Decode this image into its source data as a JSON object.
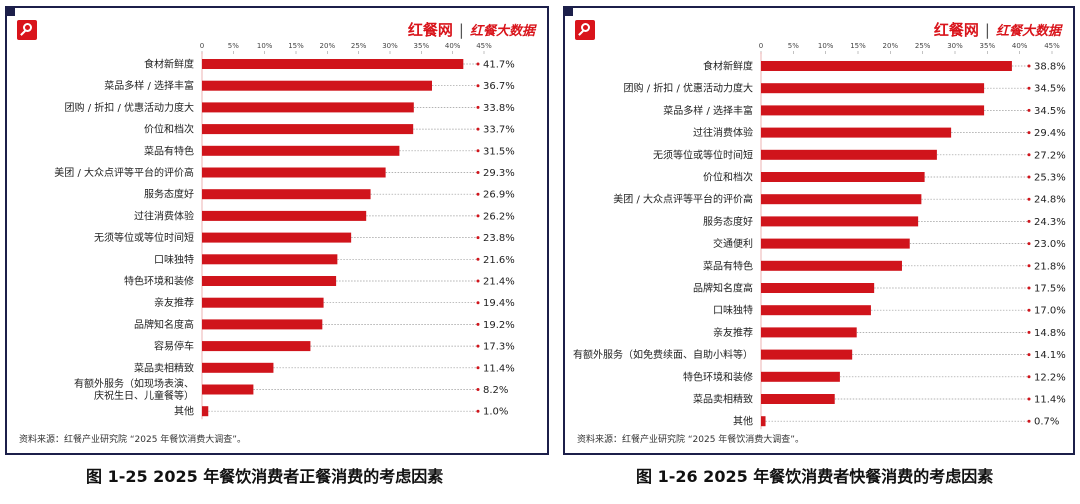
{
  "charts": [
    {
      "brand": {
        "name": "红餐网",
        "sub": "红餐大数据"
      },
      "source": "资料来源：红餐产业研究院 “2025 年餐饮消费大调查”。",
      "caption": "图 1-25    2025 年餐饮消费者正餐消费的考虑因素",
      "bar_color": "#d0141b",
      "chart_data": {
        "type": "bar",
        "orientation": "horizontal",
        "title": "图 1-25    2025 年餐饮消费者正餐消费的考虑因素",
        "xlim": [
          0,
          45
        ],
        "ticks": [
          "0",
          "5%",
          "10%",
          "15%",
          "20%",
          "25%",
          "30%",
          "35%",
          "40%",
          "45%"
        ],
        "categories": [
          "食材新鲜度",
          "菜品多样 / 选择丰富",
          "团购 / 折扣 / 优惠活动力度大",
          "价位和档次",
          "菜品有特色",
          "美团 / 大众点评等平台的评价高",
          "服务态度好",
          "过往消费体验",
          "无须等位或等位时间短",
          "口味独特",
          "特色环境和装修",
          "亲友推荐",
          "品牌知名度高",
          "容易停车",
          "菜品卖相精致",
          "有额外服务（如现场表演、\n庆祝生日、儿童餐等）",
          "其他"
        ],
        "values": [
          41.7,
          36.7,
          33.8,
          33.7,
          31.5,
          29.3,
          26.9,
          26.2,
          23.8,
          21.6,
          21.4,
          19.4,
          19.2,
          17.3,
          11.4,
          8.2,
          1.0
        ],
        "labels": [
          "41.7%",
          "36.7%",
          "33.8%",
          "33.7%",
          "31.5%",
          "29.3%",
          "26.9%",
          "26.2%",
          "23.8%",
          "21.6%",
          "21.4%",
          "19.4%",
          "19.2%",
          "17.3%",
          "11.4%",
          "8.2%",
          "1.0%"
        ]
      }
    },
    {
      "brand": {
        "name": "红餐网",
        "sub": "红餐大数据"
      },
      "source": "资料来源：红餐产业研究院 “2025 年餐饮消费大调查”。",
      "caption": "图 1-26    2025 年餐饮消费者快餐消费的考虑因素",
      "bar_color": "#d0141b",
      "chart_data": {
        "type": "bar",
        "orientation": "horizontal",
        "title": "图 1-26    2025 年餐饮消费者快餐消费的考虑因素",
        "xlim": [
          0,
          45
        ],
        "ticks": [
          "0",
          "5%",
          "10%",
          "15%",
          "20%",
          "25%",
          "30%",
          "35%",
          "40%",
          "45%"
        ],
        "categories": [
          "食材新鲜度",
          "团购 / 折扣 / 优惠活动力度大",
          "菜品多样 / 选择丰富",
          "过往消费体验",
          "无须等位或等位时间短",
          "价位和档次",
          "美团 / 大众点评等平台的评价高",
          "服务态度好",
          "交通便利",
          "菜品有特色",
          "品牌知名度高",
          "口味独特",
          "亲友推荐",
          "有额外服务（如免费续面、自助小料等）",
          "特色环境和装修",
          "菜品卖相精致",
          "其他"
        ],
        "values": [
          38.8,
          34.5,
          34.5,
          29.4,
          27.2,
          25.3,
          24.8,
          24.3,
          23.0,
          21.8,
          17.5,
          17.0,
          14.8,
          14.1,
          12.2,
          11.4,
          0.7
        ],
        "labels": [
          "38.8%",
          "34.5%",
          "34.5%",
          "29.4%",
          "27.2%",
          "25.3%",
          "24.8%",
          "24.3%",
          "23.0%",
          "21.8%",
          "17.5%",
          "17.0%",
          "14.8%",
          "14.1%",
          "12.2%",
          "11.4%",
          "0.7%"
        ]
      }
    }
  ]
}
